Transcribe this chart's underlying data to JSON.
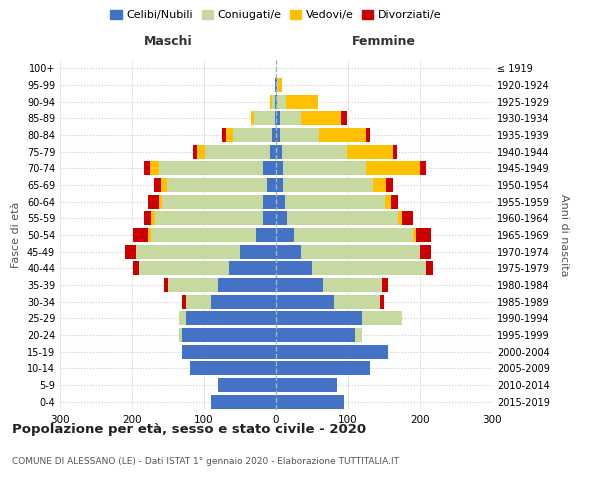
{
  "age_groups": [
    "100+",
    "95-99",
    "90-94",
    "85-89",
    "80-84",
    "75-79",
    "70-74",
    "65-69",
    "60-64",
    "55-59",
    "50-54",
    "45-49",
    "40-44",
    "35-39",
    "30-34",
    "25-29",
    "20-24",
    "15-19",
    "10-14",
    "5-9",
    "0-4"
  ],
  "birth_years": [
    "≤ 1919",
    "1920-1924",
    "1925-1929",
    "1930-1934",
    "1935-1939",
    "1940-1944",
    "1945-1949",
    "1950-1954",
    "1955-1959",
    "1960-1964",
    "1965-1969",
    "1970-1974",
    "1975-1979",
    "1980-1984",
    "1985-1989",
    "1990-1994",
    "1995-1999",
    "2000-2004",
    "2005-2009",
    "2010-2014",
    "2015-2019"
  ],
  "maschi": {
    "celibi": [
      0,
      1,
      1,
      2,
      5,
      8,
      18,
      12,
      18,
      18,
      28,
      50,
      65,
      80,
      90,
      125,
      130,
      130,
      120,
      80,
      90
    ],
    "coniugati": [
      0,
      0,
      5,
      28,
      55,
      90,
      145,
      140,
      140,
      150,
      145,
      145,
      125,
      70,
      35,
      10,
      5,
      0,
      0,
      0,
      0
    ],
    "vedovi": [
      0,
      0,
      2,
      5,
      10,
      12,
      12,
      8,
      5,
      5,
      5,
      0,
      0,
      0,
      0,
      0,
      0,
      0,
      0,
      0,
      0
    ],
    "divorziati": [
      0,
      0,
      0,
      0,
      5,
      5,
      8,
      10,
      15,
      10,
      20,
      15,
      8,
      5,
      5,
      0,
      0,
      0,
      0,
      0,
      0
    ]
  },
  "femmine": {
    "nubili": [
      0,
      1,
      2,
      5,
      5,
      8,
      10,
      10,
      12,
      15,
      25,
      35,
      50,
      65,
      80,
      120,
      110,
      155,
      130,
      85,
      95
    ],
    "coniugate": [
      0,
      2,
      12,
      30,
      55,
      90,
      115,
      125,
      140,
      155,
      165,
      165,
      158,
      82,
      65,
      55,
      10,
      0,
      0,
      0,
      0
    ],
    "vedove": [
      0,
      5,
      45,
      55,
      65,
      65,
      75,
      18,
      8,
      5,
      5,
      0,
      0,
      0,
      0,
      0,
      0,
      0,
      0,
      0,
      0
    ],
    "divorziate": [
      0,
      0,
      0,
      8,
      5,
      5,
      8,
      10,
      10,
      15,
      20,
      15,
      10,
      8,
      5,
      0,
      0,
      0,
      0,
      0,
      0
    ]
  },
  "colors": {
    "celibi_nubili": "#4472c4",
    "coniugati": "#c5d9a0",
    "vedovi": "#ffc000",
    "divorziati": "#cc0000"
  },
  "title": "Popolazione per età, sesso e stato civile - 2020",
  "subtitle": "COMUNE DI ALESSANO (LE) - Dati ISTAT 1° gennaio 2020 - Elaborazione TUTTITALIA.IT",
  "xlabel_left": "Maschi",
  "xlabel_right": "Femmine",
  "ylabel_left": "Fasce di età",
  "ylabel_right": "Anni di nascita",
  "xlim": 300,
  "bg_color": "#ffffff",
  "grid_color": "#cccccc"
}
